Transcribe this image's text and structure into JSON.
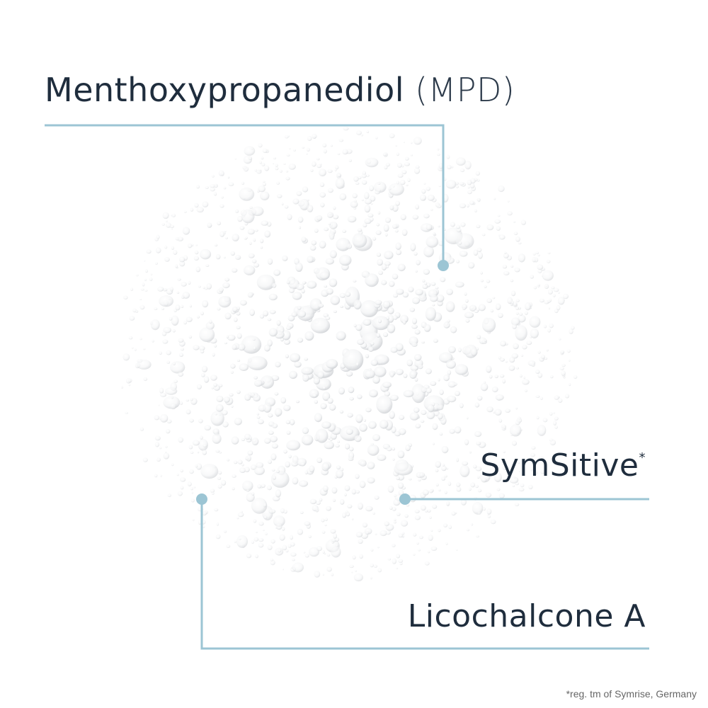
{
  "labels": {
    "mpd_main": "Menthoxypropanediol",
    "mpd_abbr": "(MPD)",
    "symsitive": "SymSitive",
    "symsitive_mark": "*",
    "licochalcone": "Licochalcone A"
  },
  "footnote": "*reg. tm of Symrise, Germany",
  "colors": {
    "text": "#1f2d3d",
    "leader_line": "#9cc5d4",
    "background": "#ffffff"
  }
}
